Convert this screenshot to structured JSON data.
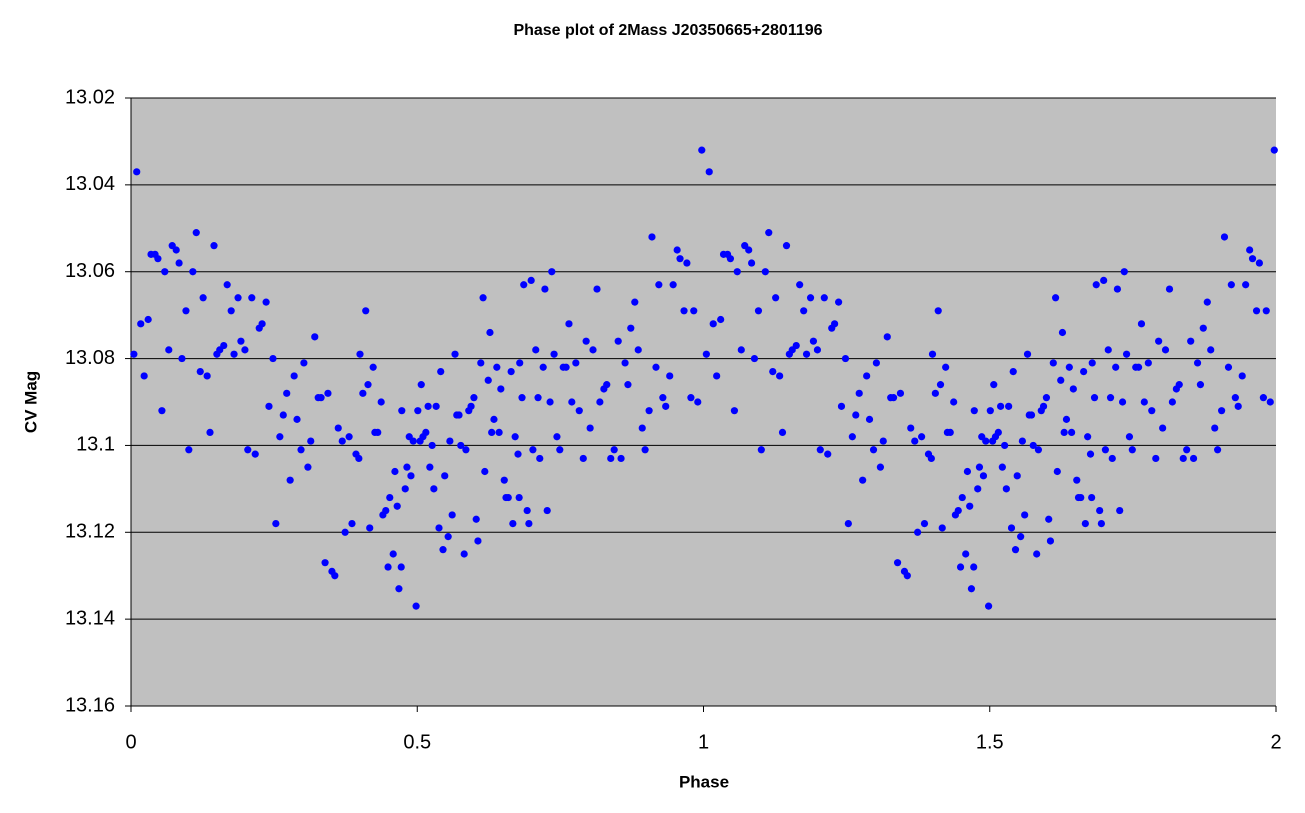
{
  "chart_data": {
    "type": "scatter",
    "title": "Phase plot of 2Mass J20350665+2801196",
    "xlabel": "Phase",
    "ylabel": "CV Mag",
    "color": "#0000ff",
    "background": "#c0c0c0",
    "grid": true,
    "xlim": [
      0,
      2
    ],
    "xticks": [
      0,
      0.5,
      1,
      1.5,
      2
    ],
    "ylim": [
      13.16,
      13.02
    ],
    "yticks": [
      13.16,
      13.14,
      13.12,
      13.1,
      13.08,
      13.06,
      13.04,
      13.02
    ],
    "x": [
      0.005,
      0.01,
      0.017,
      0.023,
      0.03,
      0.035,
      0.042,
      0.047,
      0.054,
      0.059,
      0.066,
      0.072,
      0.079,
      0.084,
      0.089,
      0.096,
      0.101,
      0.108,
      0.114,
      0.121,
      0.126,
      0.133,
      0.138,
      0.145,
      0.15,
      0.155,
      0.162,
      0.168,
      0.175,
      0.18,
      0.187,
      0.192,
      0.199,
      0.204,
      0.211,
      0.217,
      0.224,
      0.229,
      0.236,
      0.241,
      0.248,
      0.253,
      0.26,
      0.266,
      0.272,
      0.278,
      0.285,
      0.29,
      0.297,
      0.302,
      0.309,
      0.314,
      0.321,
      0.327,
      0.332,
      0.339,
      0.344,
      0.351,
      0.356,
      0.362,
      0.369,
      0.374,
      0.381,
      0.386,
      0.393,
      0.398,
      0.4,
      0.405,
      0.41,
      0.414,
      0.417,
      0.423,
      0.426,
      0.431,
      0.437,
      0.44,
      0.445,
      0.449,
      0.452,
      0.458,
      0.461,
      0.465,
      0.468,
      0.472,
      0.473,
      0.479,
      0.482,
      0.486,
      0.489,
      0.493,
      0.498,
      0.501,
      0.505,
      0.507,
      0.51,
      0.515,
      0.519,
      0.522,
      0.526,
      0.529,
      0.533,
      0.538,
      0.541,
      0.545,
      0.548,
      0.554,
      0.557,
      0.561,
      0.566,
      0.569,
      0.573,
      0.576,
      0.582,
      0.585,
      0.59,
      0.594,
      0.599,
      0.603,
      0.606,
      0.611,
      0.615,
      0.618,
      0.624,
      0.627,
      0.63,
      0.634,
      0.639,
      0.643,
      0.646,
      0.652,
      0.655,
      0.659,
      0.664,
      0.667,
      0.671,
      0.676,
      0.678,
      0.679,
      0.683,
      0.686,
      0.692,
      0.695,
      0.699,
      0.702,
      0.707,
      0.711,
      0.714,
      0.72,
      0.723,
      0.727,
      0.732,
      0.735,
      0.739,
      0.744,
      0.749,
      0.755,
      0.76,
      0.765,
      0.77,
      0.777,
      0.783,
      0.79,
      0.795,
      0.802,
      0.807,
      0.814,
      0.819,
      0.826,
      0.831,
      0.838,
      0.844,
      0.851,
      0.856,
      0.863,
      0.868,
      0.873,
      0.88,
      0.886,
      0.893,
      0.898,
      0.905,
      0.91,
      0.917,
      0.922,
      0.929,
      0.934,
      0.941,
      0.947,
      0.954,
      0.959,
      0.966,
      0.971,
      0.978,
      0.983,
      0.99,
      0.997,
      1.005,
      1.01,
      1.017,
      1.023,
      1.03,
      1.035,
      1.042,
      1.047,
      1.054,
      1.059,
      1.066,
      1.072,
      1.079,
      1.084,
      1.089,
      1.096,
      1.101,
      1.108,
      1.114,
      1.121,
      1.126,
      1.133,
      1.138,
      1.145,
      1.15,
      1.155,
      1.162,
      1.168,
      1.175,
      1.18,
      1.187,
      1.192,
      1.199,
      1.204,
      1.211,
      1.217,
      1.224,
      1.229,
      1.236,
      1.241,
      1.248,
      1.253,
      1.26,
      1.266,
      1.272,
      1.278,
      1.285,
      1.29,
      1.297,
      1.302,
      1.309,
      1.314,
      1.321,
      1.327,
      1.332,
      1.339,
      1.344,
      1.351,
      1.356,
      1.362,
      1.369,
      1.374,
      1.381,
      1.386,
      1.393,
      1.398,
      1.4,
      1.405,
      1.41,
      1.414,
      1.417,
      1.423,
      1.426,
      1.431,
      1.437,
      1.44,
      1.445,
      1.449,
      1.452,
      1.458,
      1.461,
      1.465,
      1.468,
      1.472,
      1.473,
      1.479,
      1.482,
      1.486,
      1.489,
      1.493,
      1.498,
      1.501,
      1.505,
      1.507,
      1.51,
      1.515,
      1.519,
      1.522,
      1.526,
      1.529,
      1.533,
      1.538,
      1.541,
      1.545,
      1.548,
      1.554,
      1.557,
      1.561,
      1.566,
      1.569,
      1.573,
      1.576,
      1.582,
      1.585,
      1.59,
      1.594,
      1.599,
      1.603,
      1.606,
      1.611,
      1.615,
      1.618,
      1.624,
      1.627,
      1.63,
      1.634,
      1.639,
      1.643,
      1.646,
      1.652,
      1.655,
      1.659,
      1.664,
      1.667,
      1.671,
      1.676,
      1.678,
      1.679,
      1.683,
      1.686,
      1.692,
      1.695,
      1.699,
      1.702,
      1.707,
      1.711,
      1.714,
      1.72,
      1.723,
      1.727,
      1.732,
      1.735,
      1.739,
      1.744,
      1.749,
      1.755,
      1.76,
      1.765,
      1.77,
      1.777,
      1.783,
      1.79,
      1.795,
      1.802,
      1.807,
      1.814,
      1.819,
      1.826,
      1.831,
      1.838,
      1.844,
      1.851,
      1.856,
      1.863,
      1.868,
      1.873,
      1.88,
      1.886,
      1.893,
      1.898,
      1.905,
      1.91,
      1.917,
      1.922,
      1.929,
      1.934,
      1.941,
      1.947,
      1.954,
      1.959,
      1.966,
      1.971,
      1.978,
      1.983,
      1.99,
      1.997
    ],
    "values": [
      13.079,
      13.037,
      13.072,
      13.084,
      13.071,
      13.056,
      13.056,
      13.057,
      13.092,
      13.06,
      13.078,
      13.054,
      13.055,
      13.058,
      13.08,
      13.069,
      13.101,
      13.06,
      13.051,
      13.083,
      13.066,
      13.084,
      13.097,
      13.054,
      13.079,
      13.078,
      13.077,
      13.063,
      13.069,
      13.079,
      13.066,
      13.076,
      13.078,
      13.101,
      13.066,
      13.102,
      13.073,
      13.072,
      13.067,
      13.091,
      13.08,
      13.118,
      13.098,
      13.093,
      13.088,
      13.108,
      13.084,
      13.094,
      13.101,
      13.081,
      13.105,
      13.099,
      13.075,
      13.089,
      13.089,
      13.127,
      13.088,
      13.129,
      13.13,
      13.096,
      13.099,
      13.12,
      13.098,
      13.118,
      13.102,
      13.103,
      13.079,
      13.088,
      13.069,
      13.086,
      13.119,
      13.082,
      13.097,
      13.097,
      13.09,
      13.116,
      13.115,
      13.128,
      13.112,
      13.125,
      13.106,
      13.114,
      13.133,
      13.128,
      13.092,
      13.11,
      13.105,
      13.098,
      13.107,
      13.099,
      13.137,
      13.092,
      13.099,
      13.086,
      13.098,
      13.097,
      13.091,
      13.105,
      13.1,
      13.11,
      13.091,
      13.119,
      13.083,
      13.124,
      13.107,
      13.121,
      13.099,
      13.116,
      13.079,
      13.093,
      13.093,
      13.1,
      13.125,
      13.101,
      13.092,
      13.091,
      13.089,
      13.117,
      13.122,
      13.081,
      13.066,
      13.106,
      13.085,
      13.074,
      13.097,
      13.094,
      13.082,
      13.097,
      13.087,
      13.108,
      13.112,
      13.112,
      13.083,
      13.118,
      13.098,
      13.102,
      13.112,
      13.081,
      13.089,
      13.063,
      13.115,
      13.118,
      13.062,
      13.101,
      13.078,
      13.089,
      13.103,
      13.082,
      13.064,
      13.115,
      13.09,
      13.06,
      13.079,
      13.098,
      13.101,
      13.082,
      13.082,
      13.072,
      13.09,
      13.081,
      13.092,
      13.103,
      13.076,
      13.096,
      13.078,
      13.064,
      13.09,
      13.087,
      13.086,
      13.103,
      13.101,
      13.076,
      13.103,
      13.081,
      13.086,
      13.073,
      13.067,
      13.078,
      13.096,
      13.101,
      13.092,
      13.052,
      13.082,
      13.063,
      13.089,
      13.091,
      13.084,
      13.063,
      13.055,
      13.057,
      13.069,
      13.058,
      13.089,
      13.069,
      13.09,
      13.032,
      13.079,
      13.037,
      13.072,
      13.084,
      13.071,
      13.056,
      13.056,
      13.057,
      13.092,
      13.06,
      13.078,
      13.054,
      13.055,
      13.058,
      13.08,
      13.069,
      13.101,
      13.06,
      13.051,
      13.083,
      13.066,
      13.084,
      13.097,
      13.054,
      13.079,
      13.078,
      13.077,
      13.063,
      13.069,
      13.079,
      13.066,
      13.076,
      13.078,
      13.101,
      13.066,
      13.102,
      13.073,
      13.072,
      13.067,
      13.091,
      13.08,
      13.118,
      13.098,
      13.093,
      13.088,
      13.108,
      13.084,
      13.094,
      13.101,
      13.081,
      13.105,
      13.099,
      13.075,
      13.089,
      13.089,
      13.127,
      13.088,
      13.129,
      13.13,
      13.096,
      13.099,
      13.12,
      13.098,
      13.118,
      13.102,
      13.103,
      13.079,
      13.088,
      13.069,
      13.086,
      13.119,
      13.082,
      13.097,
      13.097,
      13.09,
      13.116,
      13.115,
      13.128,
      13.112,
      13.125,
      13.106,
      13.114,
      13.133,
      13.128,
      13.092,
      13.11,
      13.105,
      13.098,
      13.107,
      13.099,
      13.137,
      13.092,
      13.099,
      13.086,
      13.098,
      13.097,
      13.091,
      13.105,
      13.1,
      13.11,
      13.091,
      13.119,
      13.083,
      13.124,
      13.107,
      13.121,
      13.099,
      13.116,
      13.079,
      13.093,
      13.093,
      13.1,
      13.125,
      13.101,
      13.092,
      13.091,
      13.089,
      13.117,
      13.122,
      13.081,
      13.066,
      13.106,
      13.085,
      13.074,
      13.097,
      13.094,
      13.082,
      13.097,
      13.087,
      13.108,
      13.112,
      13.112,
      13.083,
      13.118,
      13.098,
      13.102,
      13.112,
      13.081,
      13.089,
      13.063,
      13.115,
      13.118,
      13.062,
      13.101,
      13.078,
      13.089,
      13.103,
      13.082,
      13.064,
      13.115,
      13.09,
      13.06,
      13.079,
      13.098,
      13.101,
      13.082,
      13.082,
      13.072,
      13.09,
      13.081,
      13.092,
      13.103,
      13.076,
      13.096,
      13.078,
      13.064,
      13.09,
      13.087,
      13.086,
      13.103,
      13.101,
      13.076,
      13.103,
      13.081,
      13.086,
      13.073,
      13.067,
      13.078,
      13.096,
      13.101,
      13.092,
      13.052,
      13.082,
      13.063,
      13.089,
      13.091,
      13.084,
      13.063,
      13.055,
      13.057,
      13.069,
      13.058,
      13.089,
      13.069,
      13.09,
      13.032
    ]
  }
}
